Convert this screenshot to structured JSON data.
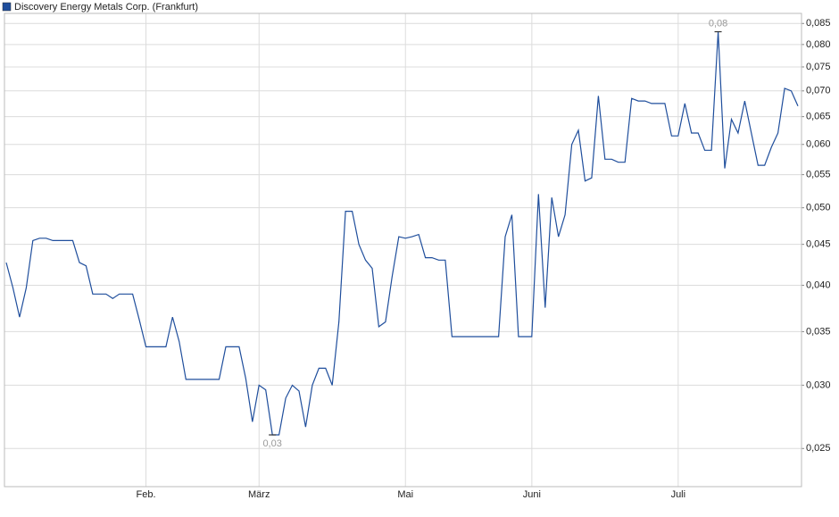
{
  "chart_data": {
    "type": "line",
    "legend": "Discovery Energy Metals Corp. (Frankfurt)",
    "log_scale": true,
    "grid": true,
    "categories": [
      null,
      null,
      null,
      null,
      null,
      null,
      null,
      null,
      null,
      null,
      null,
      null,
      null,
      null,
      null,
      null,
      null,
      null,
      null,
      null,
      null,
      "Feb.",
      null,
      null,
      null,
      null,
      null,
      null,
      null,
      null,
      null,
      null,
      null,
      null,
      null,
      null,
      null,
      null,
      "März",
      null,
      null,
      null,
      null,
      null,
      null,
      null,
      null,
      null,
      null,
      null,
      null,
      null,
      null,
      null,
      null,
      null,
      null,
      null,
      null,
      null,
      "Mai",
      null,
      null,
      null,
      null,
      null,
      null,
      null,
      null,
      null,
      null,
      null,
      null,
      null,
      null,
      null,
      null,
      null,
      null,
      "Juni",
      null,
      null,
      null,
      null,
      null,
      null,
      null,
      null,
      null,
      null,
      null,
      null,
      null,
      null,
      null,
      null,
      null,
      null,
      null,
      null,
      null,
      "Juli",
      null,
      null,
      null,
      null,
      null,
      null,
      null,
      null,
      null,
      null,
      null,
      null,
      null,
      null,
      null,
      null,
      null,
      null
    ],
    "series": [
      {
        "name": "Discovery Energy Metals Corp. (Frankfurt)",
        "color": "#1f4e9c",
        "values": [
          0.0427,
          0.0397,
          0.0365,
          0.0397,
          0.0455,
          0.0458,
          0.0458,
          0.0455,
          0.0455,
          0.0455,
          0.0455,
          0.0427,
          0.0423,
          0.039,
          0.039,
          0.039,
          0.0385,
          0.039,
          0.039,
          0.039,
          0.0362,
          0.0335,
          0.0335,
          0.0335,
          0.0335,
          0.0365,
          0.034,
          0.0305,
          0.0305,
          0.0305,
          0.0305,
          0.0305,
          0.0305,
          0.0335,
          0.0335,
          0.0335,
          0.0306,
          0.027,
          0.03,
          0.0296,
          0.026,
          0.026,
          0.0289,
          0.03,
          0.0295,
          0.0266,
          0.03,
          0.0315,
          0.0315,
          0.03,
          0.036,
          0.0495,
          0.0495,
          0.045,
          0.043,
          0.042,
          0.0355,
          0.036,
          0.041,
          0.046,
          0.0458,
          0.046,
          0.0463,
          0.0433,
          0.0433,
          0.043,
          0.043,
          0.0345,
          0.0345,
          0.0345,
          0.0345,
          0.0345,
          0.0345,
          0.0345,
          0.0345,
          0.046,
          0.049,
          0.0345,
          0.0345,
          0.0345,
          0.052,
          0.0375,
          0.0515,
          0.046,
          0.049,
          0.06,
          0.0625,
          0.054,
          0.0545,
          0.069,
          0.0575,
          0.0575,
          0.057,
          0.057,
          0.0685,
          0.068,
          0.068,
          0.0675,
          0.0675,
          0.0675,
          0.0615,
          0.0615,
          0.0675,
          0.062,
          0.062,
          0.059,
          0.059,
          0.083,
          0.056,
          0.0645,
          0.062,
          0.068,
          0.062,
          0.0565,
          0.0565,
          0.0595,
          0.062,
          0.0705,
          0.07,
          0.067
        ],
        "value_labels": [
          null,
          null,
          null,
          null,
          null,
          null,
          null,
          null,
          null,
          null,
          null,
          null,
          null,
          null,
          null,
          null,
          null,
          null,
          null,
          null,
          null,
          null,
          null,
          null,
          null,
          null,
          null,
          null,
          null,
          null,
          null,
          null,
          null,
          null,
          null,
          null,
          null,
          null,
          null,
          null,
          "0,03",
          null,
          null,
          null,
          null,
          null,
          null,
          null,
          null,
          null,
          null,
          null,
          null,
          null,
          null,
          null,
          null,
          null,
          null,
          null,
          null,
          null,
          null,
          null,
          null,
          null,
          null,
          null,
          null,
          null,
          null,
          null,
          null,
          null,
          null,
          null,
          null,
          null,
          null,
          null,
          null,
          null,
          null,
          null,
          null,
          null,
          null,
          null,
          null,
          null,
          null,
          null,
          null,
          null,
          null,
          null,
          null,
          null,
          null,
          null,
          null,
          null,
          null,
          null,
          null,
          null,
          null,
          "0,08",
          null,
          null,
          null,
          null,
          null,
          null,
          null,
          null,
          null,
          null,
          null,
          null
        ]
      }
    ],
    "ylim": [
      0.0224,
      0.0875
    ],
    "yticks": [
      {
        "value": 0.025,
        "label": "0,025"
      },
      {
        "value": 0.03,
        "label": "0,030"
      },
      {
        "value": 0.035,
        "label": "0,035"
      },
      {
        "value": 0.04,
        "label": "0,040"
      },
      {
        "value": 0.045,
        "label": "0,045"
      },
      {
        "value": 0.05,
        "label": "0,050"
      },
      {
        "value": 0.055,
        "label": "0,055"
      },
      {
        "value": 0.06,
        "label": "0,060"
      },
      {
        "value": 0.065,
        "label": "0,065"
      },
      {
        "value": 0.07,
        "label": "0,070"
      },
      {
        "value": 0.075,
        "label": "0,075"
      },
      {
        "value": 0.08,
        "label": "0,080"
      },
      {
        "value": 0.085,
        "label": "0,085"
      }
    ]
  }
}
